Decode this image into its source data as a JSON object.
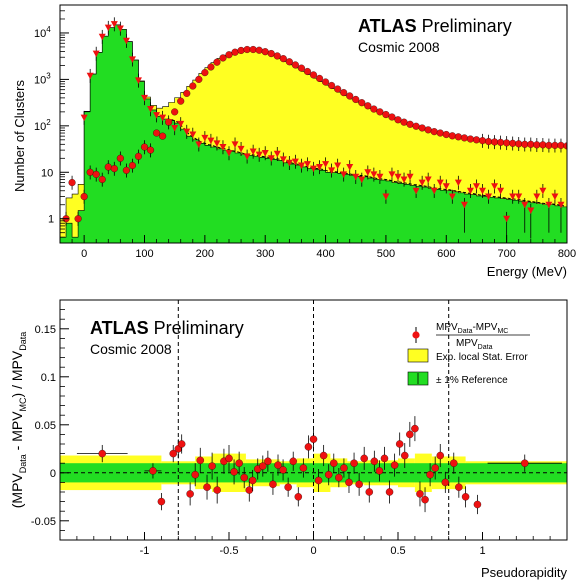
{
  "chart_data": [
    {
      "type": "histogram",
      "xlabel": "Energy (MeV)",
      "ylabel": "Number of Clusters",
      "xlim": [
        -40,
        800
      ],
      "ylim": [
        0.3,
        40000
      ],
      "yscale": "log",
      "x_ticks": [
        "0",
        "100",
        "200",
        "300",
        "400",
        "500",
        "600",
        "700",
        "800"
      ],
      "y_ticks": [
        "1",
        "10",
        "10",
        "10",
        "10"
      ],
      "y_tick_exponents": [
        "",
        "",
        "2",
        "3",
        "4"
      ],
      "atlas_label": "ATLAS",
      "status_label": "Preliminary",
      "subtitle": "Cosmic 2008",
      "colors": {
        "noise_fill": "#22dd22",
        "signal_fill": "#ffff22",
        "data": "#ee1111"
      },
      "noise_mc": {
        "x": [
          -35,
          -25,
          -15,
          -5,
          5,
          15,
          25,
          35,
          45,
          55,
          65,
          75,
          85,
          95,
          105,
          115,
          125,
          135,
          145,
          155,
          165,
          175,
          185,
          195,
          205,
          215,
          225,
          235,
          245,
          255,
          265,
          275,
          285,
          295,
          305,
          315,
          325,
          335,
          345,
          355,
          365,
          375,
          385,
          395,
          405,
          415,
          425,
          435,
          445,
          455,
          465,
          475,
          485,
          495,
          505,
          515,
          525,
          535,
          545,
          555,
          565,
          575,
          585,
          595,
          605,
          615,
          625,
          635,
          645,
          655,
          665,
          675,
          685,
          695,
          705,
          715,
          725,
          735,
          745,
          755,
          765,
          775,
          785,
          795
        ],
        "y": [
          0.4,
          0.8,
          0.4,
          1.5,
          200,
          1300,
          3800,
          8500,
          13000,
          15000,
          12000,
          6500,
          2600,
          900,
          380,
          220,
          160,
          140,
          130,
          115,
          85,
          60,
          50,
          42,
          38,
          35,
          32,
          30,
          28,
          26,
          24,
          23,
          22,
          21,
          20,
          19,
          18,
          16,
          15,
          14,
          13,
          12,
          11.5,
          11,
          10,
          9.8,
          9.5,
          9,
          8.5,
          8.2,
          8,
          7.5,
          7,
          6.8,
          6.5,
          6,
          5.8,
          5.5,
          5.2,
          5,
          4.8,
          4.5,
          4.3,
          4.1,
          4,
          3.8,
          3.6,
          3.4,
          3.3,
          3.1,
          3,
          2.9,
          2.8,
          2.7,
          2.6,
          2.5,
          2.4,
          2.3,
          2.2,
          2.1,
          2,
          2,
          1.9,
          1.8
        ]
      },
      "muon_mc": {
        "x": [
          -35,
          -25,
          -15,
          -5,
          5,
          15,
          25,
          35,
          45,
          55,
          65,
          75,
          85,
          95,
          105,
          115,
          125,
          135,
          145,
          155,
          165,
          175,
          185,
          195,
          205,
          215,
          225,
          235,
          245,
          255,
          265,
          275,
          285,
          295,
          305,
          315,
          325,
          335,
          345,
          355,
          365,
          375,
          385,
          395,
          405,
          415,
          425,
          435,
          445,
          455,
          465,
          475,
          485,
          495,
          505,
          515,
          525,
          535,
          545,
          555,
          565,
          575,
          585,
          595,
          605,
          615,
          625,
          635,
          645,
          655,
          665,
          675,
          685,
          695,
          705,
          715,
          725,
          735,
          745,
          755,
          765,
          775,
          785,
          795
        ],
        "y": [
          0.6,
          2,
          3,
          4,
          5,
          6,
          7,
          8,
          9,
          11,
          13,
          16,
          20,
          27,
          38,
          55,
          80,
          120,
          190,
          290,
          440,
          650,
          920,
          1300,
          1750,
          2250,
          2800,
          3300,
          3750,
          4100,
          4300,
          4350,
          4200,
          3950,
          3600,
          3200,
          2800,
          2400,
          2050,
          1750,
          1480,
          1250,
          1050,
          880,
          740,
          620,
          520,
          440,
          370,
          315,
          270,
          230,
          200,
          175,
          155,
          135,
          120,
          108,
          98,
          90,
          82,
          75,
          70,
          65,
          61,
          58,
          55,
          52,
          50,
          48,
          46,
          45,
          44,
          43,
          42,
          41,
          40,
          40,
          39,
          39,
          38,
          38,
          38,
          37
        ]
      },
      "data_signal": {
        "x": [
          -30,
          -20,
          -10,
          0,
          10,
          20,
          30,
          40,
          50,
          60,
          70,
          80,
          90,
          100,
          110,
          120,
          130,
          140,
          150,
          160,
          170,
          180,
          190,
          200,
          210,
          220,
          230,
          240,
          250,
          260,
          270,
          280,
          290,
          300,
          310,
          320,
          330,
          340,
          350,
          360,
          370,
          380,
          390,
          400,
          410,
          420,
          430,
          440,
          450,
          460,
          470,
          480,
          490,
          500,
          510,
          520,
          530,
          540,
          550,
          560,
          570,
          580,
          590,
          600,
          610,
          620,
          630,
          640,
          650,
          660,
          670,
          680,
          690,
          700,
          710,
          720,
          730,
          740,
          750,
          760,
          770,
          780,
          790,
          800
        ],
        "y": [
          1,
          6,
          1,
          3,
          10,
          9,
          7,
          13,
          12,
          20,
          11,
          14,
          22,
          35,
          30,
          70,
          60,
          120,
          200,
          340,
          500,
          720,
          1000,
          1400,
          1850,
          2350,
          2900,
          3400,
          3850,
          4200,
          4400,
          4400,
          4250,
          3950,
          3600,
          3200,
          2800,
          2400,
          2050,
          1750,
          1480,
          1250,
          1050,
          880,
          740,
          620,
          520,
          440,
          370,
          315,
          270,
          230,
          200,
          175,
          155,
          135,
          120,
          108,
          98,
          90,
          82,
          75,
          70,
          65,
          61,
          58,
          55,
          52,
          50,
          48,
          46,
          45,
          44,
          43,
          42,
          41,
          40,
          40,
          39,
          39,
          38,
          38,
          38,
          37
        ]
      },
      "data_noise": {
        "x": [
          0,
          10,
          20,
          30,
          40,
          50,
          60,
          70,
          80,
          90,
          100,
          110,
          120,
          130,
          140,
          150,
          160,
          170,
          180,
          190,
          200,
          210,
          220,
          230,
          240,
          250,
          260,
          270,
          280,
          290,
          300,
          310,
          320,
          330,
          340,
          350,
          360,
          370,
          380,
          390,
          400,
          410,
          420,
          430,
          440,
          450,
          460,
          470,
          480,
          490,
          500,
          510,
          520,
          530,
          540,
          550,
          560,
          570,
          580,
          590,
          600,
          610,
          620,
          630,
          640,
          650,
          660,
          670,
          680,
          690,
          700,
          710,
          720,
          730,
          740,
          750,
          760,
          770,
          780,
          790
        ],
        "y": [
          150,
          1200,
          3600,
          8300,
          13000,
          15500,
          12500,
          6800,
          2700,
          950,
          400,
          230,
          170,
          150,
          120,
          90,
          110,
          75,
          65,
          40,
          55,
          48,
          42,
          35,
          26,
          40,
          32,
          22,
          28,
          24,
          26,
          20,
          25,
          19,
          16,
          17,
          14,
          15,
          12,
          13,
          15,
          11,
          14,
          9,
          13,
          8,
          7,
          10,
          9,
          8,
          3,
          9,
          8,
          7,
          8,
          4,
          6,
          7,
          4,
          6,
          5,
          3,
          6,
          2,
          4,
          5,
          4,
          3,
          5,
          4,
          1,
          3,
          3,
          2,
          1.5,
          3,
          4,
          2,
          3,
          2
        ]
      }
    },
    {
      "type": "scatter",
      "xlabel": "Pseudorapidity",
      "ylabel": "(MPV_Data - MPV_MC) / MPV_Data",
      "xlim": [
        -1.5,
        1.5
      ],
      "ylim": [
        -0.07,
        0.18
      ],
      "x_ticks": [
        "-1",
        "-0.5",
        "0",
        "0.5",
        "1"
      ],
      "y_ticks": [
        "-0.05",
        "0",
        "0.05",
        "0.1",
        "0.15"
      ],
      "atlas_label": "ATLAS",
      "status_label": "Preliminary",
      "subtitle": "Cosmic 2008",
      "legend": {
        "position": "top-right",
        "entries": [
          {
            "num": "MPV",
            "num_sub1": "Data",
            "num_mid": "-MPV",
            "num_sub2": "MC",
            "den": "MPV",
            "den_sub": "Data"
          },
          {
            "label": "Exp. local Stat. Error"
          },
          {
            "label": "± 1% Reference"
          }
        ]
      },
      "colors": {
        "ref_band": "#22dd22",
        "stat_band": "#ffff22",
        "data": "#ee1111"
      },
      "vertical_lines": [
        -0.8,
        0,
        0.8
      ],
      "reference_band": 0.01,
      "points": {
        "x": [
          -1.25,
          -0.95,
          -0.9,
          -0.83,
          -0.8,
          -0.78,
          -0.73,
          -0.7,
          -0.67,
          -0.63,
          -0.6,
          -0.57,
          -0.53,
          -0.5,
          -0.47,
          -0.44,
          -0.41,
          -0.38,
          -0.36,
          -0.33,
          -0.3,
          -0.27,
          -0.24,
          -0.21,
          -0.18,
          -0.15,
          -0.12,
          -0.09,
          -0.06,
          -0.03,
          0.0,
          0.03,
          0.06,
          0.09,
          0.12,
          0.15,
          0.18,
          0.21,
          0.24,
          0.27,
          0.3,
          0.33,
          0.36,
          0.39,
          0.42,
          0.45,
          0.48,
          0.51,
          0.54,
          0.57,
          0.6,
          0.63,
          0.66,
          0.69,
          0.72,
          0.75,
          0.78,
          0.83,
          0.86,
          0.9,
          0.97,
          1.25
        ],
        "y": [
          0.02,
          0.002,
          -0.03,
          0.02,
          0.025,
          0.03,
          -0.022,
          -0.002,
          0.013,
          -0.015,
          0.007,
          -0.018,
          0.012,
          0.015,
          0.001,
          0.01,
          -0.005,
          -0.018,
          -0.008,
          0.004,
          0.007,
          0.012,
          -0.012,
          0.008,
          0.003,
          -0.015,
          0.012,
          -0.025,
          0.005,
          0.027,
          0.035,
          -0.008,
          0.018,
          -0.002,
          0.01,
          -0.005,
          0.005,
          -0.01,
          0.01,
          -0.012,
          0.015,
          -0.02,
          0.012,
          0.002,
          0.015,
          -0.02,
          0.008,
          0.03,
          0.018,
          0.04,
          0.046,
          -0.022,
          -0.028,
          -0.002,
          0.005,
          0.018,
          -0.01,
          0.01,
          -0.015,
          -0.025,
          -0.033,
          0.01
        ],
        "err": [
          0.009,
          0.008,
          0.009,
          0.009,
          0.01,
          0.01,
          0.012,
          0.012,
          0.013,
          0.013,
          0.014,
          0.014,
          0.013,
          0.014,
          0.013,
          0.012,
          0.011,
          0.012,
          0.011,
          0.011,
          0.011,
          0.011,
          0.011,
          0.011,
          0.011,
          0.01,
          0.01,
          0.01,
          0.01,
          0.012,
          0.013,
          0.012,
          0.011,
          0.011,
          0.01,
          0.01,
          0.01,
          0.011,
          0.011,
          0.012,
          0.012,
          0.011,
          0.011,
          0.011,
          0.012,
          0.012,
          0.012,
          0.012,
          0.013,
          0.013,
          0.013,
          0.013,
          0.013,
          0.012,
          0.012,
          0.012,
          0.011,
          0.011,
          0.011,
          0.011,
          0.01,
          0.009
        ],
        "xerr": [
          0.15,
          0.05,
          0,
          0,
          0,
          0,
          0,
          0,
          0,
          0,
          0,
          0,
          0,
          0,
          0,
          0,
          0,
          0,
          0,
          0,
          0,
          0,
          0,
          0,
          0,
          0,
          0,
          0,
          0,
          0,
          0,
          0,
          0,
          0,
          0,
          0,
          0,
          0,
          0,
          0,
          0,
          0,
          0,
          0,
          0,
          0,
          0,
          0,
          0,
          0,
          0,
          0,
          0,
          0,
          0,
          0,
          0,
          0,
          0,
          0,
          0,
          0.22
        ]
      },
      "stat_band": {
        "edges": [
          -1.5,
          -0.9,
          -0.7,
          -0.6,
          -0.4,
          -0.2,
          -0.1,
          0.0,
          0.1,
          0.2,
          0.3,
          0.5,
          0.6,
          0.7,
          0.9,
          1.5
        ],
        "half_width": [
          0.018,
          0.012,
          0.017,
          0.02,
          0.014,
          0.012,
          0.015,
          0.02,
          0.015,
          0.012,
          0.013,
          0.015,
          0.02,
          0.017,
          0.012,
          0.018
        ]
      }
    }
  ]
}
